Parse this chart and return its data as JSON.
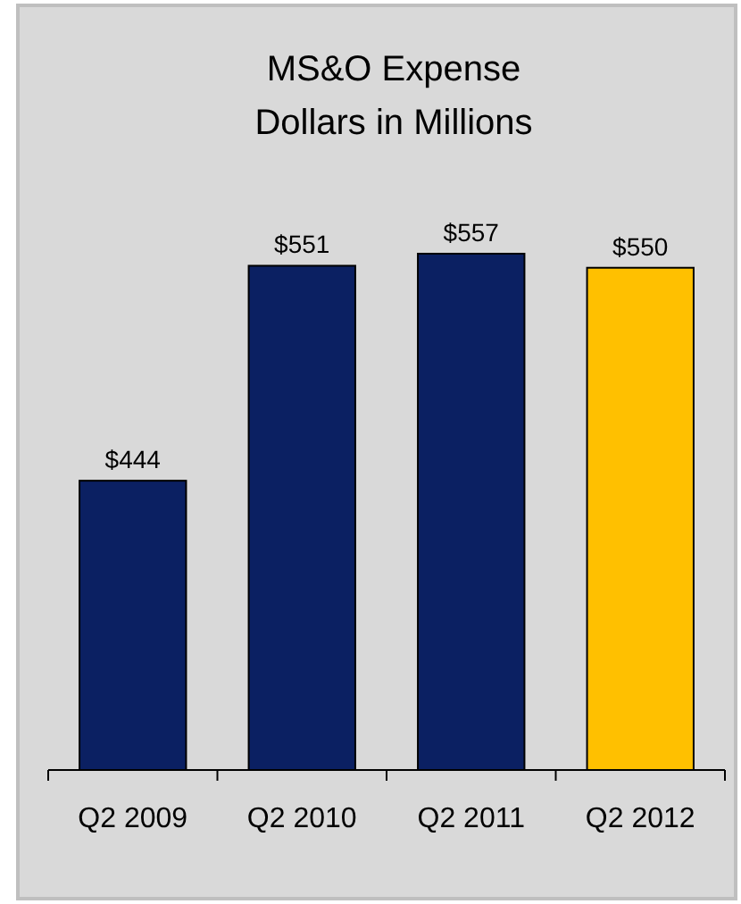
{
  "chart_data": {
    "type": "bar",
    "title": "MS&O Expense\nDollars in Millions",
    "categories": [
      "Q2 2009",
      "Q2 2010",
      "Q2 2011",
      "Q2 2012"
    ],
    "values": [
      444,
      551,
      557,
      550
    ],
    "value_labels": [
      "$444",
      "$551",
      "$557",
      "$550"
    ],
    "colors": [
      "#0b2062",
      "#0b2062",
      "#0b2062",
      "#ffc000"
    ],
    "ylim": [
      300,
      557
    ]
  }
}
